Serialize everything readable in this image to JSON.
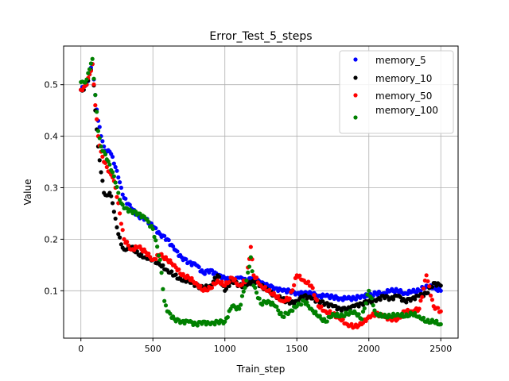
{
  "chart_data": {
    "type": "scatter",
    "title": "Error_Test_5_steps",
    "xlabel": "Train_step",
    "ylabel": "Value",
    "xlim": [
      -120,
      2620
    ],
    "ylim": [
      0.008,
      0.575
    ],
    "xticks": [
      0,
      500,
      1000,
      1500,
      2000,
      2500
    ],
    "yticks": [
      0.1,
      0.2,
      0.3,
      0.4,
      0.5
    ],
    "grid": true,
    "legend_position": "top-right",
    "series": [
      {
        "name": "memory_5",
        "color": "#0000ff",
        "points": [
          [
            0,
            0.49
          ],
          [
            20,
            0.495
          ],
          [
            40,
            0.5
          ],
          [
            60,
            0.52
          ],
          [
            80,
            0.54
          ],
          [
            100,
            0.48
          ],
          [
            120,
            0.43
          ],
          [
            140,
            0.4
          ],
          [
            160,
            0.38
          ],
          [
            180,
            0.37
          ],
          [
            200,
            0.37
          ],
          [
            220,
            0.36
          ],
          [
            240,
            0.34
          ],
          [
            260,
            0.32
          ],
          [
            280,
            0.3
          ],
          [
            300,
            0.28
          ],
          [
            350,
            0.26
          ],
          [
            400,
            0.245
          ],
          [
            450,
            0.24
          ],
          [
            500,
            0.225
          ],
          [
            550,
            0.21
          ],
          [
            600,
            0.2
          ],
          [
            650,
            0.18
          ],
          [
            700,
            0.165
          ],
          [
            750,
            0.155
          ],
          [
            800,
            0.15
          ],
          [
            850,
            0.135
          ],
          [
            900,
            0.14
          ],
          [
            950,
            0.13
          ],
          [
            1000,
            0.125
          ],
          [
            1050,
            0.12
          ],
          [
            1100,
            0.125
          ],
          [
            1150,
            0.12
          ],
          [
            1200,
            0.125
          ],
          [
            1250,
            0.115
          ],
          [
            1300,
            0.11
          ],
          [
            1350,
            0.105
          ],
          [
            1400,
            0.1
          ],
          [
            1450,
            0.1
          ],
          [
            1500,
            0.095
          ],
          [
            1550,
            0.095
          ],
          [
            1600,
            0.095
          ],
          [
            1650,
            0.09
          ],
          [
            1700,
            0.09
          ],
          [
            1750,
            0.088
          ],
          [
            1800,
            0.085
          ],
          [
            1850,
            0.085
          ],
          [
            1900,
            0.085
          ],
          [
            1950,
            0.09
          ],
          [
            2000,
            0.09
          ],
          [
            2050,
            0.095
          ],
          [
            2100,
            0.095
          ],
          [
            2150,
            0.1
          ],
          [
            2200,
            0.1
          ],
          [
            2250,
            0.095
          ],
          [
            2300,
            0.098
          ],
          [
            2350,
            0.1
          ],
          [
            2400,
            0.11
          ],
          [
            2450,
            0.105
          ],
          [
            2500,
            0.1
          ]
        ]
      },
      {
        "name": "memory_10",
        "color": "#000000",
        "points": [
          [
            0,
            0.49
          ],
          [
            20,
            0.49
          ],
          [
            40,
            0.5
          ],
          [
            60,
            0.52
          ],
          [
            80,
            0.54
          ],
          [
            100,
            0.45
          ],
          [
            120,
            0.38
          ],
          [
            140,
            0.33
          ],
          [
            160,
            0.29
          ],
          [
            180,
            0.285
          ],
          [
            200,
            0.29
          ],
          [
            220,
            0.27
          ],
          [
            240,
            0.24
          ],
          [
            260,
            0.21
          ],
          [
            280,
            0.19
          ],
          [
            300,
            0.18
          ],
          [
            350,
            0.185
          ],
          [
            400,
            0.17
          ],
          [
            450,
            0.165
          ],
          [
            500,
            0.16
          ],
          [
            550,
            0.15
          ],
          [
            600,
            0.14
          ],
          [
            650,
            0.13
          ],
          [
            700,
            0.12
          ],
          [
            750,
            0.12
          ],
          [
            800,
            0.11
          ],
          [
            850,
            0.105
          ],
          [
            900,
            0.11
          ],
          [
            950,
            0.13
          ],
          [
            1000,
            0.1
          ],
          [
            1050,
            0.12
          ],
          [
            1100,
            0.11
          ],
          [
            1150,
            0.11
          ],
          [
            1200,
            0.12
          ],
          [
            1250,
            0.11
          ],
          [
            1300,
            0.1
          ],
          [
            1350,
            0.09
          ],
          [
            1400,
            0.085
          ],
          [
            1450,
            0.075
          ],
          [
            1500,
            0.08
          ],
          [
            1550,
            0.09
          ],
          [
            1600,
            0.085
          ],
          [
            1650,
            0.08
          ],
          [
            1700,
            0.075
          ],
          [
            1750,
            0.07
          ],
          [
            1800,
            0.065
          ],
          [
            1850,
            0.065
          ],
          [
            1900,
            0.07
          ],
          [
            1950,
            0.075
          ],
          [
            2000,
            0.08
          ],
          [
            2050,
            0.08
          ],
          [
            2100,
            0.09
          ],
          [
            2150,
            0.085
          ],
          [
            2200,
            0.09
          ],
          [
            2250,
            0.08
          ],
          [
            2300,
            0.085
          ],
          [
            2350,
            0.09
          ],
          [
            2400,
            0.095
          ],
          [
            2450,
            0.115
          ],
          [
            2500,
            0.11
          ]
        ]
      },
      {
        "name": "memory_50",
        "color": "#ff0000",
        "points": [
          [
            0,
            0.49
          ],
          [
            20,
            0.495
          ],
          [
            40,
            0.5
          ],
          [
            60,
            0.52
          ],
          [
            80,
            0.54
          ],
          [
            100,
            0.46
          ],
          [
            120,
            0.4
          ],
          [
            140,
            0.37
          ],
          [
            160,
            0.35
          ],
          [
            180,
            0.34
          ],
          [
            200,
            0.33
          ],
          [
            220,
            0.32
          ],
          [
            240,
            0.3
          ],
          [
            260,
            0.27
          ],
          [
            280,
            0.23
          ],
          [
            300,
            0.2
          ],
          [
            350,
            0.18
          ],
          [
            400,
            0.185
          ],
          [
            450,
            0.175
          ],
          [
            500,
            0.16
          ],
          [
            550,
            0.17
          ],
          [
            600,
            0.16
          ],
          [
            650,
            0.15
          ],
          [
            700,
            0.13
          ],
          [
            750,
            0.125
          ],
          [
            800,
            0.115
          ],
          [
            850,
            0.1
          ],
          [
            900,
            0.105
          ],
          [
            950,
            0.12
          ],
          [
            1000,
            0.11
          ],
          [
            1050,
            0.125
          ],
          [
            1100,
            0.11
          ],
          [
            1150,
            0.12
          ],
          [
            1180,
            0.185
          ],
          [
            1200,
            0.13
          ],
          [
            1250,
            0.11
          ],
          [
            1300,
            0.1
          ],
          [
            1350,
            0.09
          ],
          [
            1400,
            0.08
          ],
          [
            1450,
            0.085
          ],
          [
            1500,
            0.13
          ],
          [
            1550,
            0.12
          ],
          [
            1600,
            0.11
          ],
          [
            1650,
            0.07
          ],
          [
            1700,
            0.06
          ],
          [
            1750,
            0.055
          ],
          [
            1800,
            0.045
          ],
          [
            1850,
            0.035
          ],
          [
            1900,
            0.03
          ],
          [
            1950,
            0.035
          ],
          [
            2000,
            0.05
          ],
          [
            2050,
            0.055
          ],
          [
            2100,
            0.05
          ],
          [
            2150,
            0.045
          ],
          [
            2200,
            0.045
          ],
          [
            2250,
            0.06
          ],
          [
            2300,
            0.06
          ],
          [
            2350,
            0.065
          ],
          [
            2400,
            0.13
          ],
          [
            2450,
            0.07
          ],
          [
            2500,
            0.06
          ]
        ]
      },
      {
        "name": "memory_100",
        "color": "#008000",
        "points": [
          [
            0,
            0.505
          ],
          [
            20,
            0.505
          ],
          [
            40,
            0.51
          ],
          [
            60,
            0.53
          ],
          [
            80,
            0.55
          ],
          [
            100,
            0.48
          ],
          [
            120,
            0.41
          ],
          [
            140,
            0.38
          ],
          [
            160,
            0.37
          ],
          [
            180,
            0.355
          ],
          [
            200,
            0.345
          ],
          [
            220,
            0.33
          ],
          [
            240,
            0.31
          ],
          [
            260,
            0.29
          ],
          [
            280,
            0.27
          ],
          [
            300,
            0.26
          ],
          [
            350,
            0.255
          ],
          [
            400,
            0.25
          ],
          [
            450,
            0.24
          ],
          [
            500,
            0.22
          ],
          [
            550,
            0.16
          ],
          [
            580,
            0.08
          ],
          [
            600,
            0.06
          ],
          [
            650,
            0.045
          ],
          [
            700,
            0.04
          ],
          [
            750,
            0.04
          ],
          [
            800,
            0.035
          ],
          [
            850,
            0.04
          ],
          [
            900,
            0.035
          ],
          [
            950,
            0.04
          ],
          [
            1000,
            0.04
          ],
          [
            1050,
            0.07
          ],
          [
            1100,
            0.065
          ],
          [
            1150,
            0.12
          ],
          [
            1180,
            0.165
          ],
          [
            1200,
            0.11
          ],
          [
            1250,
            0.075
          ],
          [
            1300,
            0.08
          ],
          [
            1350,
            0.07
          ],
          [
            1400,
            0.05
          ],
          [
            1450,
            0.06
          ],
          [
            1500,
            0.07
          ],
          [
            1550,
            0.08
          ],
          [
            1600,
            0.065
          ],
          [
            1650,
            0.05
          ],
          [
            1700,
            0.04
          ],
          [
            1750,
            0.055
          ],
          [
            1800,
            0.05
          ],
          [
            1850,
            0.055
          ],
          [
            1900,
            0.06
          ],
          [
            1950,
            0.045
          ],
          [
            2000,
            0.1
          ],
          [
            2050,
            0.055
          ],
          [
            2100,
            0.05
          ],
          [
            2150,
            0.05
          ],
          [
            2200,
            0.055
          ],
          [
            2250,
            0.05
          ],
          [
            2300,
            0.055
          ],
          [
            2350,
            0.05
          ],
          [
            2400,
            0.04
          ],
          [
            2450,
            0.04
          ],
          [
            2500,
            0.035
          ]
        ]
      }
    ]
  }
}
